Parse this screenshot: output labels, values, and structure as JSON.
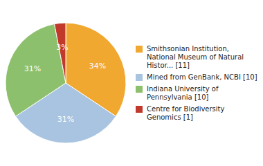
{
  "chart_data": {
    "type": "pie",
    "categories": [
      "Smithsonian Institution,\nNational Museum of Natural\nHistor... [11]",
      "Mined from GenBank, NCBI [10]",
      "Indiana University of\nPennsylvania [10]",
      "Centre for Biodiversity\nGenomics [1]"
    ],
    "values": [
      34,
      31,
      31,
      3
    ],
    "value_labels": [
      "34%",
      "31%",
      "31%",
      "3%"
    ],
    "colors": [
      "#f0a830",
      "#a8c4e0",
      "#8dc06c",
      "#c0392b"
    ],
    "data_labels": true,
    "legend": "right"
  }
}
